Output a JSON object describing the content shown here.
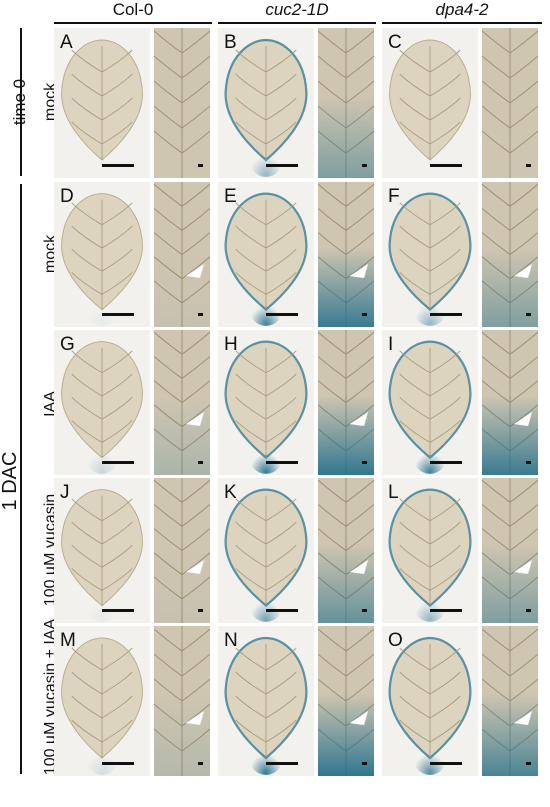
{
  "columns": [
    {
      "label": "Col-0",
      "italic": false
    },
    {
      "label": "cuc2-1D",
      "italic": true
    },
    {
      "label": "dpa4-2",
      "italic": true
    }
  ],
  "time_labels": {
    "time0": "time 0",
    "dac": "1 DAC"
  },
  "row_labels": [
    "mock",
    "mock",
    "IAA",
    "100 µM yucasin",
    "100 µM yucasin + IAA"
  ],
  "panel_letters": [
    "A",
    "B",
    "C",
    "D",
    "E",
    "F",
    "G",
    "H",
    "I",
    "J",
    "K",
    "L",
    "M",
    "N",
    "O"
  ],
  "stain_color": "#1f6e8c",
  "stain_levels": [
    [
      0.0,
      0.45,
      0.0
    ],
    [
      0.05,
      0.85,
      0.45
    ],
    [
      0.2,
      0.9,
      0.85
    ],
    [
      0.05,
      0.6,
      0.45
    ],
    [
      0.15,
      0.9,
      0.75
    ]
  ]
}
